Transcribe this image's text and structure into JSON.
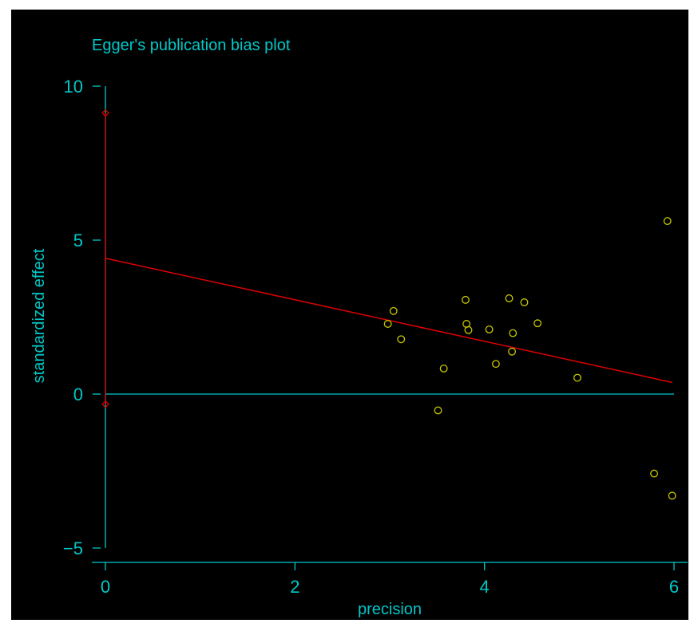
{
  "chart_data": {
    "type": "scatter",
    "title": "Egger's publication bias plot",
    "xlabel": "precision",
    "ylabel": "standardized effect",
    "xlim": [
      0,
      6
    ],
    "ylim": [
      -5,
      10
    ],
    "xticks": [
      0,
      2,
      4,
      6
    ],
    "yticks": [
      -5,
      0,
      5,
      10
    ],
    "grid": false,
    "legend": "none",
    "colors": {
      "background": "#000000",
      "axis": "#00c8c8",
      "text": "#00c8c8",
      "points": "#c8c800",
      "regression": "#e00000"
    },
    "points": [
      {
        "x": 2.98,
        "y": 2.28
      },
      {
        "x": 3.04,
        "y": 2.7
      },
      {
        "x": 3.12,
        "y": 1.78
      },
      {
        "x": 3.51,
        "y": -0.53
      },
      {
        "x": 3.57,
        "y": 0.83
      },
      {
        "x": 3.8,
        "y": 3.06
      },
      {
        "x": 3.81,
        "y": 2.28
      },
      {
        "x": 3.83,
        "y": 2.08
      },
      {
        "x": 4.05,
        "y": 2.1
      },
      {
        "x": 4.12,
        "y": 0.98
      },
      {
        "x": 4.26,
        "y": 3.11
      },
      {
        "x": 4.29,
        "y": 1.38
      },
      {
        "x": 4.3,
        "y": 1.98
      },
      {
        "x": 4.42,
        "y": 2.98
      },
      {
        "x": 4.56,
        "y": 2.3
      },
      {
        "x": 4.98,
        "y": 0.53
      },
      {
        "x": 5.79,
        "y": -2.58
      },
      {
        "x": 5.93,
        "y": 5.62
      },
      {
        "x": 5.98,
        "y": -3.3
      }
    ],
    "regression_line": {
      "x": [
        0,
        5.98
      ],
      "y": [
        4.41,
        0.38
      ]
    },
    "intercept_ci": {
      "x": 0,
      "lower": -0.33,
      "upper": 9.13
    }
  }
}
